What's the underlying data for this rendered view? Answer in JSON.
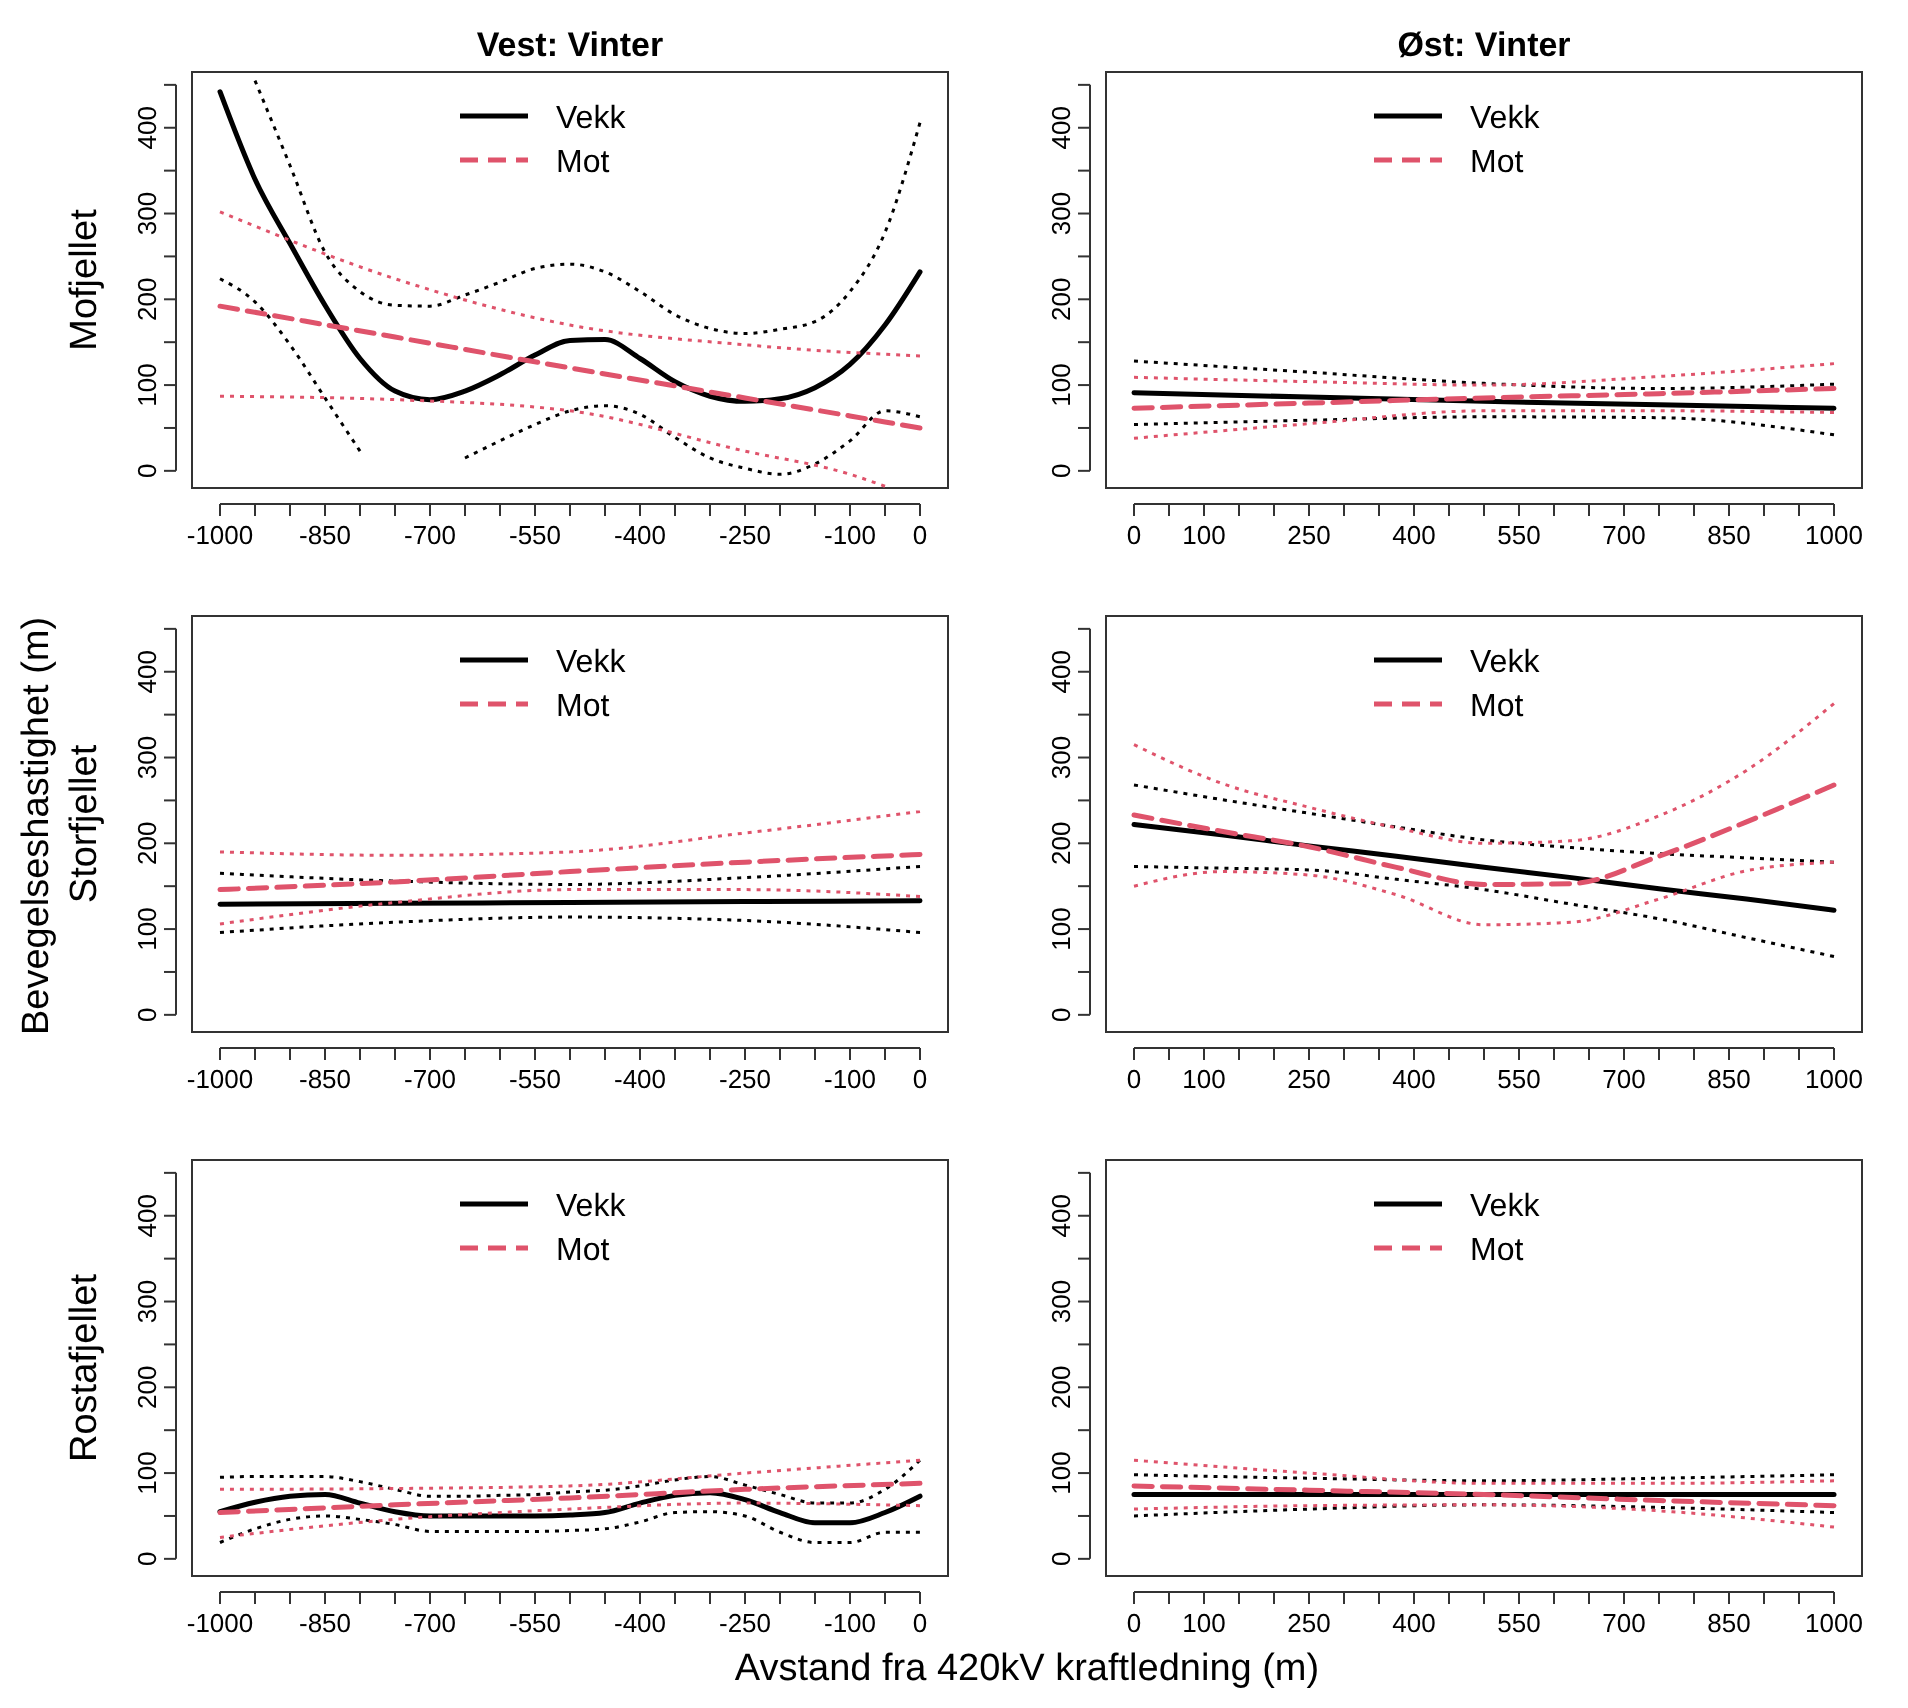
{
  "chart_data": [
    {
      "type": "line",
      "title": "Vest: Vinter",
      "ylabel": "Mofjellet",
      "legend": "top",
      "annotations": [
        "Bevegelseshastighet (m)",
        "Avstand fra 420kV kraftledning (m)"
      ],
      "xlim": [
        -1040,
        40
      ],
      "ylim": [
        -20,
        465
      ],
      "xticks": [
        -1000,
        {
          "value": -950,
          "label": null
        },
        {
          "value": -900,
          "label": null
        },
        -850,
        {
          "value": -800,
          "label": null
        },
        {
          "value": -750,
          "label": null
        },
        -700,
        {
          "value": -650,
          "label": null
        },
        {
          "value": -600,
          "label": null
        },
        -550,
        {
          "value": -500,
          "label": null
        },
        {
          "value": -450,
          "label": null
        },
        -400,
        {
          "value": -350,
          "label": null
        },
        {
          "value": -300,
          "label": null
        },
        -250,
        {
          "value": -200,
          "label": null
        },
        {
          "value": -150,
          "label": null
        },
        -100,
        {
          "value": -50,
          "label": null
        },
        0
      ],
      "yticks": [
        0,
        {
          "value": 50,
          "label": null
        },
        100,
        {
          "value": 150,
          "label": null
        },
        200,
        {
          "value": 250,
          "label": null
        },
        300,
        {
          "value": 350,
          "label": null
        },
        400,
        {
          "value": 450,
          "label": null
        }
      ],
      "series": [
        {
          "name": "Vekk",
          "color": "#000000",
          "line_style": "solid",
          "x": [
            -1000,
            -950,
            -900,
            -850,
            -800,
            -750,
            -700,
            -650,
            -600,
            -550,
            -500,
            -450,
            -400,
            -350,
            -300,
            -250,
            -200,
            -150,
            -100,
            -50,
            0
          ],
          "values": [
            442,
            340,
            265,
            193,
            131,
            93,
            83,
            93,
            112,
            135,
            152,
            153,
            131,
            104,
            87,
            81,
            84,
            97,
            124,
            170,
            232
          ]
        },
        {
          "color": "#000000",
          "line_style": "dotted",
          "x": [
            -950,
            -900,
            -850,
            -800,
            -750,
            -700,
            -650,
            -600,
            -550,
            -500,
            -450,
            -400,
            -350,
            -300,
            -250,
            -200,
            -150,
            -100,
            -50,
            0
          ],
          "values": [
            455,
            356,
            255,
            209,
            193,
            192,
            205,
            220,
            236,
            241,
            232,
            209,
            182,
            166,
            160,
            165,
            174,
            209,
            278,
            406
          ]
        },
        {
          "color": "#000000",
          "line_style": "dotted",
          "x": [
            -1000,
            -950,
            -900,
            -850,
            -800
          ],
          "values": [
            224,
            197,
            147,
            85,
            23
          ]
        },
        {
          "color": "#000000",
          "line_style": "dotted",
          "x": [
            -650,
            -600,
            -550,
            -500,
            -450,
            -400,
            -350,
            -300,
            -250,
            -200,
            -150,
            -100,
            -50,
            0
          ],
          "values": [
            15,
            35,
            54,
            70,
            76,
            66,
            39,
            15,
            3,
            -4,
            8,
            35,
            70,
            63
          ]
        },
        {
          "name": "Mot",
          "color": "#df536b",
          "line_style": "dashed",
          "x": [
            -1000,
            -750,
            -500,
            -250,
            -100,
            -50,
            0
          ],
          "values": [
            192,
            156,
            120,
            85,
            64,
            57,
            50
          ]
        },
        {
          "color": "#df536b",
          "line_style": "dotted",
          "x": [
            -1000,
            -750,
            -500,
            -250,
            -100,
            -50,
            0
          ],
          "values": [
            302,
            224,
            170,
            147,
            138,
            136,
            134
          ]
        },
        {
          "color": "#df536b",
          "line_style": "dotted",
          "x": [
            -1000,
            -750,
            -500,
            -250,
            -100,
            -50
          ],
          "values": [
            87,
            83,
            70,
            23,
            -4,
            -18
          ]
        }
      ]
    },
    {
      "type": "line",
      "title": "Øst: Vinter",
      "legend": "top",
      "xlim": [
        -40,
        1040
      ],
      "ylim": [
        -20,
        465
      ],
      "xticks": [
        0,
        {
          "value": 50,
          "label": null
        },
        100,
        {
          "value": 150,
          "label": null
        },
        {
          "value": 200,
          "label": null
        },
        250,
        {
          "value": 300,
          "label": null
        },
        {
          "value": 350,
          "label": null
        },
        400,
        {
          "value": 450,
          "label": null
        },
        {
          "value": 500,
          "label": null
        },
        550,
        {
          "value": 600,
          "label": null
        },
        {
          "value": 650,
          "label": null
        },
        700,
        {
          "value": 750,
          "label": null
        },
        {
          "value": 800,
          "label": null
        },
        850,
        {
          "value": 900,
          "label": null
        },
        {
          "value": 950,
          "label": null
        },
        1000
      ],
      "yticks": [
        0,
        {
          "value": 50,
          "label": null
        },
        100,
        {
          "value": 150,
          "label": null
        },
        200,
        {
          "value": 250,
          "label": null
        },
        300,
        {
          "value": 350,
          "label": null
        },
        400,
        {
          "value": 450,
          "label": null
        }
      ],
      "series": [
        {
          "name": "Vekk",
          "color": "#000000",
          "line_style": "solid",
          "x": [
            0,
            250,
            500,
            750,
            1000
          ],
          "values": [
            91,
            86,
            81,
            77,
            73
          ]
        },
        {
          "color": "#000000",
          "line_style": "dotted",
          "x": [
            0,
            250,
            500,
            750,
            1000
          ],
          "values": [
            128,
            115,
            102,
            96,
            101
          ]
        },
        {
          "color": "#000000",
          "line_style": "dotted",
          "x": [
            0,
            250,
            500,
            750,
            1000
          ],
          "values": [
            54,
            59,
            63,
            62,
            42
          ]
        },
        {
          "name": "Mot",
          "color": "#df536b",
          "line_style": "dashed",
          "x": [
            0,
            250,
            500,
            750,
            1000
          ],
          "values": [
            73,
            79,
            85,
            90,
            96
          ]
        },
        {
          "color": "#df536b",
          "line_style": "dotted",
          "x": [
            0,
            250,
            500,
            750,
            1000
          ],
          "values": [
            109,
            104,
            100,
            110,
            125
          ]
        },
        {
          "color": "#df536b",
          "line_style": "dotted",
          "x": [
            0,
            250,
            500,
            750,
            1000
          ],
          "values": [
            38,
            55,
            70,
            70,
            68
          ]
        }
      ]
    },
    {
      "type": "line",
      "ylabel": "Storfjellet",
      "legend": "top",
      "xlim": [
        -1040,
        40
      ],
      "ylim": [
        -20,
        465
      ],
      "xticks": [
        -1000,
        {
          "value": -950,
          "label": null
        },
        {
          "value": -900,
          "label": null
        },
        -850,
        {
          "value": -800,
          "label": null
        },
        {
          "value": -750,
          "label": null
        },
        -700,
        {
          "value": -650,
          "label": null
        },
        {
          "value": -600,
          "label": null
        },
        -550,
        {
          "value": -500,
          "label": null
        },
        {
          "value": -450,
          "label": null
        },
        -400,
        {
          "value": -350,
          "label": null
        },
        {
          "value": -300,
          "label": null
        },
        -250,
        {
          "value": -200,
          "label": null
        },
        {
          "value": -150,
          "label": null
        },
        -100,
        {
          "value": -50,
          "label": null
        },
        0
      ],
      "yticks": [
        0,
        {
          "value": 50,
          "label": null
        },
        100,
        {
          "value": 150,
          "label": null
        },
        200,
        {
          "value": 250,
          "label": null
        },
        300,
        {
          "value": 350,
          "label": null
        },
        400,
        {
          "value": 450,
          "label": null
        }
      ],
      "series": [
        {
          "name": "Vekk",
          "color": "#000000",
          "line_style": "solid",
          "x": [
            -1000,
            -750,
            -500,
            -250,
            0
          ],
          "values": [
            129,
            130,
            131,
            132,
            133
          ]
        },
        {
          "color": "#000000",
          "line_style": "dotted",
          "x": [
            -1000,
            -750,
            -500,
            -250,
            0
          ],
          "values": [
            165,
            156,
            152,
            160,
            173
          ]
        },
        {
          "color": "#000000",
          "line_style": "dotted",
          "x": [
            -1000,
            -750,
            -500,
            -250,
            0
          ],
          "values": [
            96,
            108,
            114,
            110,
            96
          ]
        },
        {
          "name": "Mot",
          "color": "#df536b",
          "line_style": "dashed",
          "x": [
            -1000,
            -750,
            -500,
            -250,
            0
          ],
          "values": [
            146,
            155,
            167,
            178,
            187
          ]
        },
        {
          "color": "#df536b",
          "line_style": "dotted",
          "x": [
            -1000,
            -750,
            -500,
            -250,
            0
          ],
          "values": [
            190,
            186,
            190,
            212,
            237
          ]
        },
        {
          "color": "#df536b",
          "line_style": "dotted",
          "x": [
            -1000,
            -750,
            -500,
            -250,
            0
          ],
          "values": [
            106,
            131,
            146,
            146,
            138
          ]
        }
      ]
    },
    {
      "type": "line",
      "legend": "top",
      "xlim": [
        -40,
        1040
      ],
      "ylim": [
        -20,
        465
      ],
      "xticks": [
        0,
        {
          "value": 50,
          "label": null
        },
        100,
        {
          "value": 150,
          "label": null
        },
        {
          "value": 200,
          "label": null
        },
        250,
        {
          "value": 300,
          "label": null
        },
        {
          "value": 350,
          "label": null
        },
        400,
        {
          "value": 450,
          "label": null
        },
        {
          "value": 500,
          "label": null
        },
        550,
        {
          "value": 600,
          "label": null
        },
        {
          "value": 650,
          "label": null
        },
        700,
        {
          "value": 750,
          "label": null
        },
        {
          "value": 800,
          "label": null
        },
        850,
        {
          "value": 900,
          "label": null
        },
        {
          "value": 950,
          "label": null
        },
        1000
      ],
      "yticks": [
        0,
        {
          "value": 50,
          "label": null
        },
        100,
        {
          "value": 150,
          "label": null
        },
        200,
        {
          "value": 250,
          "label": null
        },
        300,
        {
          "value": 350,
          "label": null
        },
        400,
        {
          "value": 450,
          "label": null
        }
      ],
      "series": [
        {
          "name": "Vekk",
          "color": "#000000",
          "line_style": "solid",
          "x": [
            0,
            125,
            250,
            375,
            500,
            625,
            750,
            875,
            1000
          ],
          "values": [
            222,
            210,
            197,
            185,
            172,
            160,
            147,
            135,
            122
          ]
        },
        {
          "color": "#000000",
          "line_style": "dotted",
          "x": [
            0,
            125,
            250,
            375,
            500,
            625,
            750,
            875,
            1000
          ],
          "values": [
            268,
            251,
            235,
            219,
            204,
            195,
            188,
            183,
            178
          ]
        },
        {
          "color": "#000000",
          "line_style": "dotted",
          "x": [
            0,
            125,
            250,
            375,
            500,
            625,
            750,
            875,
            1000
          ],
          "values": [
            173,
            171,
            169,
            158,
            146,
            129,
            112,
            90,
            68
          ]
        },
        {
          "name": "Mot",
          "color": "#df536b",
          "line_style": "dashed",
          "x": [
            0,
            125,
            250,
            375,
            500,
            625,
            750,
            875,
            1000
          ],
          "values": [
            233,
            214,
            196,
            172,
            152,
            153,
            185,
            225,
            268
          ]
        },
        {
          "color": "#df536b",
          "line_style": "dotted",
          "x": [
            0,
            125,
            250,
            375,
            500,
            625,
            750,
            875,
            1000
          ],
          "values": [
            315,
            270,
            242,
            218,
            200,
            203,
            232,
            285,
            363
          ]
        },
        {
          "color": "#df536b",
          "line_style": "dotted",
          "x": [
            0,
            125,
            250,
            375,
            500,
            625,
            750,
            875,
            1000
          ],
          "values": [
            150,
            167,
            163,
            140,
            105,
            108,
            135,
            168,
            178
          ]
        }
      ]
    },
    {
      "type": "line",
      "ylabel": "Rostafjellet",
      "legend": "top",
      "xlim": [
        -1040,
        40
      ],
      "ylim": [
        -20,
        465
      ],
      "xticks": [
        -1000,
        {
          "value": -950,
          "label": null
        },
        {
          "value": -900,
          "label": null
        },
        -850,
        {
          "value": -800,
          "label": null
        },
        {
          "value": -750,
          "label": null
        },
        -700,
        {
          "value": -650,
          "label": null
        },
        {
          "value": -600,
          "label": null
        },
        -550,
        {
          "value": -500,
          "label": null
        },
        {
          "value": -450,
          "label": null
        },
        -400,
        {
          "value": -350,
          "label": null
        },
        {
          "value": -300,
          "label": null
        },
        -250,
        {
          "value": -200,
          "label": null
        },
        {
          "value": -150,
          "label": null
        },
        -100,
        {
          "value": -50,
          "label": null
        },
        0
      ],
      "yticks": [
        0,
        {
          "value": 50,
          "label": null
        },
        100,
        {
          "value": 150,
          "label": null
        },
        200,
        {
          "value": 250,
          "label": null
        },
        300,
        {
          "value": 350,
          "label": null
        },
        400,
        {
          "value": 450,
          "label": null
        }
      ],
      "series": [
        {
          "name": "Vekk",
          "color": "#000000",
          "line_style": "solid",
          "x": [
            -1000,
            -950,
            -900,
            -850,
            -800,
            -750,
            -700,
            -650,
            -600,
            -550,
            -500,
            -450,
            -400,
            -350,
            -300,
            -250,
            -200,
            -150,
            -100,
            -50,
            0
          ],
          "values": [
            55,
            66,
            73,
            75,
            65,
            55,
            50,
            50,
            50,
            50,
            51,
            54,
            65,
            74,
            77,
            69,
            54,
            42,
            42,
            54,
            73
          ]
        },
        {
          "color": "#000000",
          "line_style": "dotted",
          "x": [
            -1000,
            -950,
            -900,
            -850,
            -800,
            -750,
            -700,
            -650,
            -600,
            -550,
            -500,
            -450,
            -400,
            -350,
            -300,
            -250,
            -200,
            -150,
            -100,
            -50,
            0
          ],
          "values": [
            95,
            96,
            96,
            96,
            90,
            81,
            73,
            73,
            74,
            75,
            78,
            80,
            85,
            92,
            96,
            86,
            75,
            65,
            65,
            81,
            115
          ]
        },
        {
          "color": "#000000",
          "line_style": "dotted",
          "x": [
            -1000,
            -950,
            -900,
            -850,
            -800,
            -750,
            -700,
            -650,
            -600,
            -550,
            -500,
            -450,
            -400,
            -350,
            -300,
            -250,
            -200,
            -150,
            -100,
            -50,
            0
          ],
          "values": [
            19,
            35,
            46,
            50,
            46,
            40,
            32,
            32,
            32,
            32,
            33,
            35,
            43,
            54,
            55,
            50,
            31,
            19,
            19,
            31,
            31
          ]
        },
        {
          "name": "Mot",
          "color": "#df536b",
          "line_style": "dashed",
          "x": [
            -1000,
            -750,
            -500,
            -250,
            0
          ],
          "values": [
            54,
            63,
            71,
            81,
            88
          ]
        },
        {
          "color": "#df536b",
          "line_style": "dotted",
          "x": [
            -1000,
            -750,
            -500,
            -250,
            0
          ],
          "values": [
            81,
            82,
            85,
            100,
            115
          ]
        },
        {
          "color": "#df536b",
          "line_style": "dotted",
          "x": [
            -1000,
            -750,
            -500,
            -250,
            0
          ],
          "values": [
            25,
            46,
            58,
            65,
            62
          ]
        }
      ]
    },
    {
      "type": "line",
      "legend": "top",
      "xlim": [
        -40,
        1040
      ],
      "ylim": [
        -20,
        465
      ],
      "xticks": [
        0,
        {
          "value": 50,
          "label": null
        },
        100,
        {
          "value": 150,
          "label": null
        },
        {
          "value": 200,
          "label": null
        },
        250,
        {
          "value": 300,
          "label": null
        },
        {
          "value": 350,
          "label": null
        },
        400,
        {
          "value": 450,
          "label": null
        },
        {
          "value": 500,
          "label": null
        },
        550,
        {
          "value": 600,
          "label": null
        },
        {
          "value": 650,
          "label": null
        },
        700,
        {
          "value": 750,
          "label": null
        },
        {
          "value": 800,
          "label": null
        },
        850,
        {
          "value": 900,
          "label": null
        },
        {
          "value": 950,
          "label": null
        },
        1000
      ],
      "yticks": [
        0,
        {
          "value": 50,
          "label": null
        },
        100,
        {
          "value": 150,
          "label": null
        },
        200,
        {
          "value": 250,
          "label": null
        },
        300,
        {
          "value": 350,
          "label": null
        },
        400,
        {
          "value": 450,
          "label": null
        }
      ],
      "series": [
        {
          "name": "Vekk",
          "color": "#000000",
          "line_style": "solid",
          "x": [
            0,
            250,
            500,
            750,
            1000
          ],
          "values": [
            75,
            75,
            75,
            75,
            75
          ]
        },
        {
          "color": "#000000",
          "line_style": "dotted",
          "x": [
            0,
            250,
            500,
            750,
            1000
          ],
          "values": [
            98,
            94,
            91,
            94,
            98
          ]
        },
        {
          "color": "#000000",
          "line_style": "dotted",
          "x": [
            0,
            250,
            500,
            750,
            1000
          ],
          "values": [
            50,
            58,
            63,
            60,
            54
          ]
        },
        {
          "name": "Mot",
          "color": "#df536b",
          "line_style": "dashed",
          "x": [
            0,
            250,
            500,
            750,
            1000
          ],
          "values": [
            85,
            80,
            75,
            68,
            62
          ]
        },
        {
          "color": "#df536b",
          "line_style": "dotted",
          "x": [
            0,
            250,
            500,
            750,
            1000
          ],
          "values": [
            115,
            100,
            88,
            88,
            91
          ]
        },
        {
          "color": "#df536b",
          "line_style": "dotted",
          "x": [
            0,
            250,
            500,
            750,
            1000
          ],
          "values": [
            58,
            62,
            63,
            56,
            37
          ]
        }
      ]
    }
  ]
}
